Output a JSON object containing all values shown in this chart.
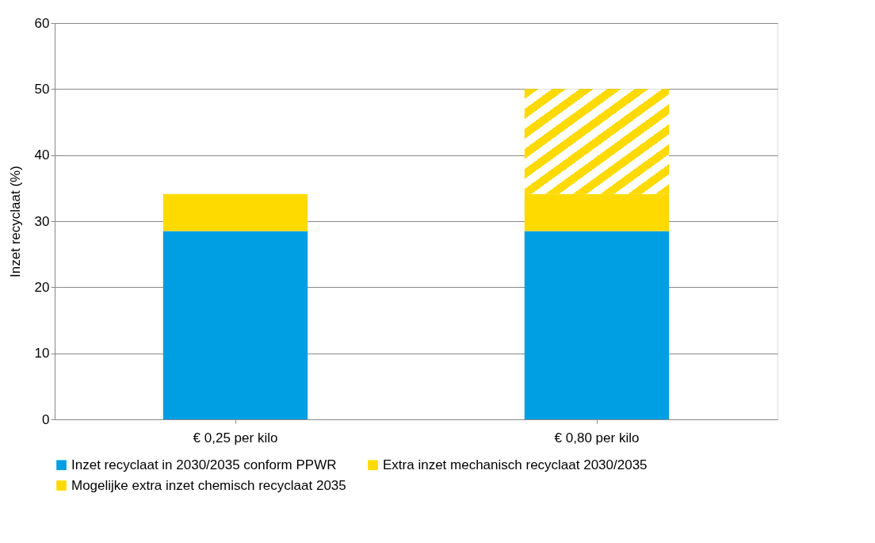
{
  "chart_data": {
    "type": "bar",
    "stacked": true,
    "ylabel": "Inzet recyclaat (%)",
    "categories": [
      "€ 0,25 per kilo",
      "€ 0,80 per kilo"
    ],
    "series": [
      {
        "name": "Inzet recyclaat in 2030/2035 conform PPWR",
        "color": "#009fe3",
        "values": [
          28.5,
          28.5
        ]
      },
      {
        "name": "Extra inzet mechanisch recyclaat 2030/2035",
        "color": "#ffda00",
        "values": [
          5.6,
          5.6
        ]
      },
      {
        "name": "Mogelijke extra inzet chemisch recyclaat 2035",
        "color": "#ffda00",
        "values": [
          null,
          15.9
        ]
      }
    ],
    "ylim": [
      0,
      60
    ],
    "yticks": [
      0,
      10,
      20,
      30,
      40,
      50,
      60
    ],
    "grid": "y",
    "legend": "bottom"
  }
}
